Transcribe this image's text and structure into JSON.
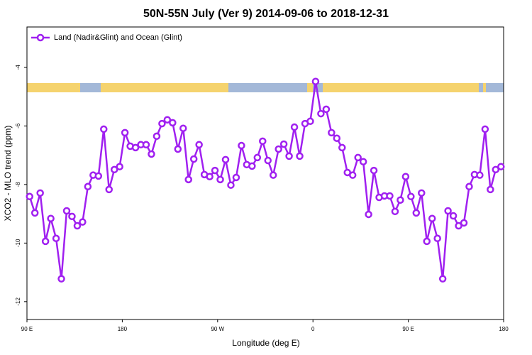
{
  "chart_data": {
    "type": "line",
    "title": "50N-55N July (Ver 9)   2014-09-06 to 2018-12-31",
    "x_label": "Longitude (deg E)",
    "y_label": "XCO2 - MLO trend (ppm)",
    "legend_position": "top-left",
    "xlim": [
      90,
      540
    ],
    "xticks": [
      {
        "value": 90,
        "label": "90 E"
      },
      180,
      {
        "value": 270,
        "label": "90 W"
      },
      {
        "value": 360,
        "label": "0"
      },
      {
        "value": 450,
        "label": "90 E"
      },
      {
        "value": 540,
        "label": "180"
      }
    ],
    "ylim": [
      -12.61,
      -2.62
    ],
    "yticks": [
      -4,
      -6,
      -8,
      -10,
      -12
    ],
    "x": [
      92.5,
      97.5,
      102.5,
      107.5,
      112.5,
      117.5,
      122.5,
      127.5,
      132.5,
      137.5,
      142.5,
      147.5,
      152.5,
      157.5,
      162.5,
      167.5,
      172.5,
      177.5,
      182.5,
      187.5,
      192.5,
      197.5,
      202.5,
      207.5,
      212.5,
      217.5,
      222.5,
      227.5,
      232.5,
      237.5,
      242.5,
      247.5,
      252.5,
      257.5,
      262.5,
      267.5,
      272.5,
      277.5,
      282.5,
      287.5,
      292.5,
      297.5,
      302.5,
      307.5,
      312.5,
      317.5,
      322.5,
      327.5,
      332.5,
      337.5,
      342.5,
      347.5,
      352.5,
      357.5,
      362.5,
      367.5,
      372.5,
      377.5,
      382.5,
      387.5,
      392.5,
      397.5,
      402.5,
      407.5,
      412.5,
      417.5,
      422.5,
      427.5,
      432.5,
      437.5,
      442.5,
      447.5,
      452.5,
      457.5,
      462.5,
      467.5,
      472.5,
      477.5,
      482.5,
      487.5,
      492.5,
      497.5,
      502.5,
      507.5,
      512.5,
      517.5,
      522.5,
      527.5,
      532.5,
      537.5
    ],
    "series": [
      {
        "name": "Land (Nadir&Glint) and Ocean (Glint)",
        "color": "#a020f0",
        "values": [
          -8.41,
          -8.97,
          -8.29,
          -9.94,
          -9.16,
          -9.84,
          -11.22,
          -8.9,
          -9.09,
          -9.41,
          -9.28,
          -8.07,
          -7.68,
          -7.71,
          -6.11,
          -8.17,
          -7.49,
          -7.39,
          -6.23,
          -6.69,
          -6.74,
          -6.64,
          -6.64,
          -6.96,
          -6.35,
          -5.92,
          -5.79,
          -5.89,
          -6.79,
          -6.08,
          -7.83,
          -7.13,
          -6.64,
          -7.66,
          -7.73,
          -7.52,
          -7.83,
          -7.15,
          -8.02,
          -7.76,
          -6.67,
          -7.32,
          -7.37,
          -7.08,
          -6.52,
          -7.18,
          -7.68,
          -6.79,
          -6.62,
          -7.03,
          -6.04,
          -7.03,
          -5.92,
          -5.84,
          -4.48,
          -5.58,
          -5.43,
          -6.23,
          -6.42,
          -6.74,
          -7.59,
          -7.68,
          -7.08,
          -7.22,
          -9.02,
          -7.52,
          -8.44,
          -8.39,
          -8.39,
          -8.92,
          -8.53,
          -7.73,
          -8.41,
          -8.97,
          -8.29,
          -9.94,
          -9.16,
          -9.84,
          -11.22,
          -8.9,
          -9.07,
          -9.41,
          -9.31,
          -8.07,
          -7.66,
          -7.68,
          -6.11,
          -8.17,
          -7.49,
          -7.39
        ]
      }
    ]
  }
}
